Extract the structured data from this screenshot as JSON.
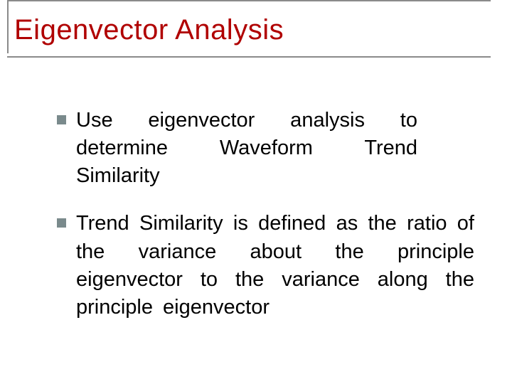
{
  "slide": {
    "title": "Eigenvector Analysis",
    "title_color": "#b00000",
    "title_fontsize": 40,
    "border_color": "#8a8a8a",
    "bullet_marker_color": "#7a8a8c",
    "body_fontsize": 29,
    "body_color": "#000000",
    "background_color": "#ffffff",
    "bullets": [
      {
        "text": "Use eigenvector analysis to determine Waveform Trend Similarity"
      },
      {
        "text": "Trend Similarity is defined as the ratio of the variance about the principle eigenvector to the variance along the principle eigenvector"
      }
    ]
  }
}
